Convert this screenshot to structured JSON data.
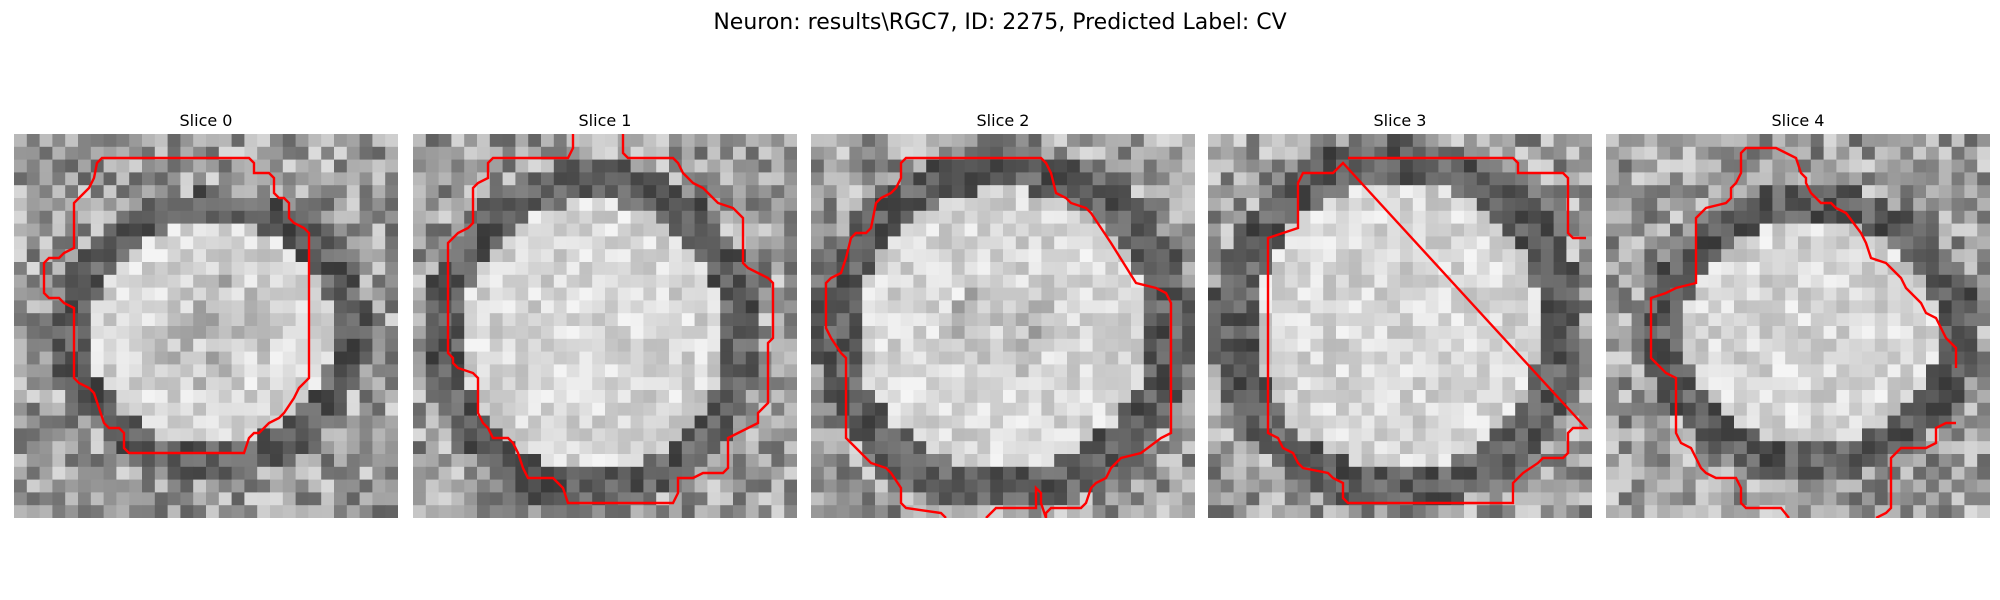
{
  "figure": {
    "title": "Neuron: results\\RGC7, ID: 2275, Predicted Label: CV",
    "contour_color": "#ff0000"
  },
  "panels": [
    {
      "title": "Slice 0"
    },
    {
      "title": "Slice 1"
    },
    {
      "title": "Slice 2"
    },
    {
      "title": "Slice 3"
    },
    {
      "title": "Slice 4"
    }
  ]
}
